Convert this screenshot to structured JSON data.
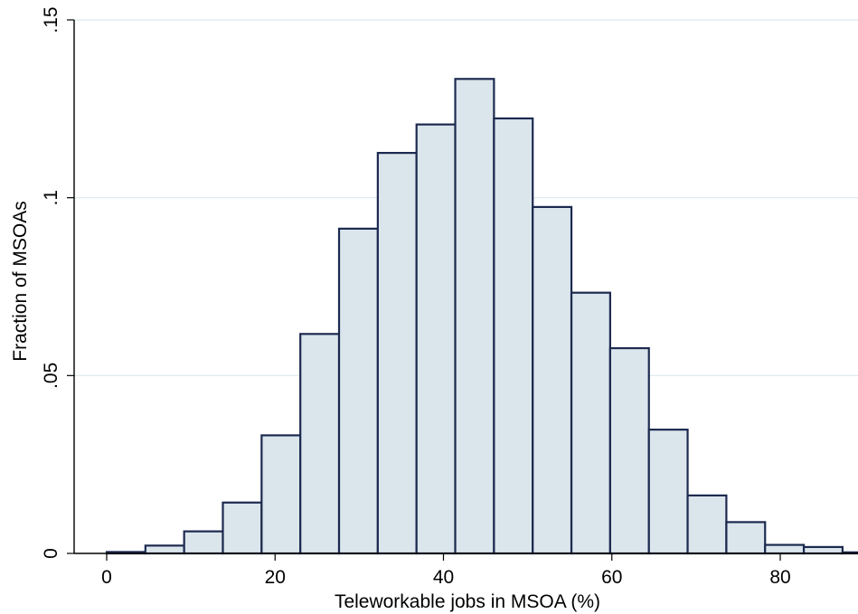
{
  "chart_data": {
    "type": "bar",
    "subtype": "histogram",
    "xlabel": "Teleworkable jobs in MSOA (%)",
    "ylabel": "Fraction of MSOAs",
    "xlim": [
      -4.5,
      88.5
    ],
    "ylim": [
      0,
      0.15
    ],
    "grid": true,
    "bin_width": 4.6,
    "bins_start": 0,
    "values": [
      0.0004,
      0.0022,
      0.0062,
      0.0143,
      0.0332,
      0.0617,
      0.0913,
      0.1126,
      0.1206,
      0.1334,
      0.1223,
      0.0974,
      0.0733,
      0.0577,
      0.0348,
      0.0163,
      0.0088,
      0.0024,
      0.0018,
      0.0003
    ],
    "x_ticks": [
      0,
      20,
      40,
      60,
      80
    ],
    "x_tick_labels": [
      "0",
      "20",
      "40",
      "60",
      "80"
    ],
    "y_ticks": [
      0,
      0.05,
      0.1,
      0.15
    ],
    "y_tick_labels": [
      "0",
      ".05",
      ".1",
      ".15"
    ],
    "colors": {
      "bar_fill": "#dbe5ec",
      "bar_edge": "#1c2a4f",
      "grid": "#dde8ee"
    }
  }
}
